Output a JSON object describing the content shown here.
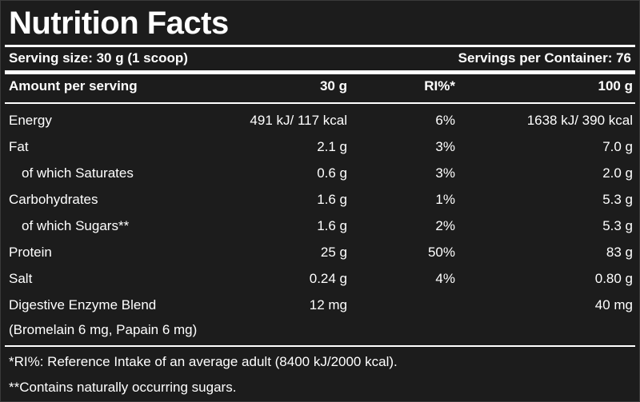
{
  "title": "Nutrition Facts",
  "serving_size": "Serving size: 30 g (1 scoop)",
  "servings_per_container": "Servings per Container: 76",
  "header": {
    "amount": "Amount per serving",
    "per_serving": "30 g",
    "ri": "RI%*",
    "per_100": "100 g"
  },
  "rows": [
    {
      "label": "Energy",
      "per_serving": "491 kJ/ 117 kcal",
      "ri": "6%",
      "per_100": "1638 kJ/ 390 kcal"
    },
    {
      "label": "Fat",
      "per_serving": "2.1 g",
      "ri": "3%",
      "per_100": "7.0 g"
    },
    {
      "label": "of which Saturates",
      "per_serving": "0.6 g",
      "ri": "3%",
      "per_100": "2.0 g"
    },
    {
      "label": "Carbohydrates",
      "per_serving": "1.6 g",
      "ri": "1%",
      "per_100": "5.3 g"
    },
    {
      "label": "of which Sugars**",
      "per_serving": "1.6 g",
      "ri": "2%",
      "per_100": "5.3 g"
    },
    {
      "label": "Protein",
      "per_serving": "25 g",
      "ri": "50%",
      "per_100": "83 g"
    },
    {
      "label": "Salt",
      "per_serving": "0.24 g",
      "ri": "4%",
      "per_100": "0.80 g"
    },
    {
      "label": "Digestive Enzyme Blend",
      "per_serving": "12 mg",
      "ri": "",
      "per_100": "40 mg"
    }
  ],
  "enzyme_detail": "(Bromelain 6 mg, Papain 6 mg)",
  "footnotes": [
    "*RI%: Reference Intake of an average adult (8400 kJ/2000 kcal).",
    "**Contains naturally occurring sugars."
  ]
}
